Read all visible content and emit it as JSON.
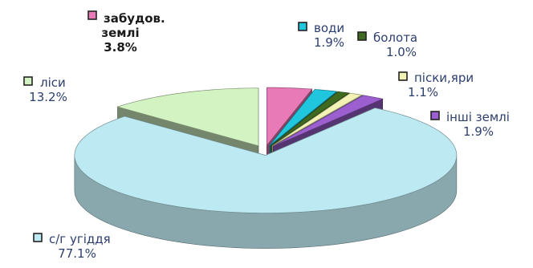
{
  "chart_data": {
    "type": "pie",
    "title": "",
    "style": "3d-exploded",
    "legend": "inline-labels",
    "slices": [
      {
        "name": "забудов. землі",
        "name_lines": [
          "забудов.",
          "землі"
        ],
        "value": 3.8,
        "label": "3.8%",
        "color": "#e87ab8",
        "bold": true
      },
      {
        "name": "води",
        "name_lines": [
          "води"
        ],
        "value": 1.9,
        "label": "1.9%",
        "color": "#1fc6dd"
      },
      {
        "name": "болота",
        "name_lines": [
          "болота"
        ],
        "value": 1.0,
        "label": "1.0%",
        "color": "#3f6a1f"
      },
      {
        "name": "піски,яри",
        "name_lines": [
          "піски,яри"
        ],
        "value": 1.1,
        "label": "1.1%",
        "color": "#f1f2b4"
      },
      {
        "name": "інші землі",
        "name_lines": [
          "інші землі"
        ],
        "value": 1.9,
        "label": "1.9%",
        "color": "#9b5fd0"
      },
      {
        "name": "с/г угіддя",
        "name_lines": [
          "с/г угіддя"
        ],
        "value": 77.1,
        "label": "77.1%",
        "color": "#bdeaf2"
      },
      {
        "name": "ліси",
        "name_lines": [
          "ліси"
        ],
        "value": 13.2,
        "label": "13.2%",
        "color": "#d3f3c2"
      }
    ]
  }
}
